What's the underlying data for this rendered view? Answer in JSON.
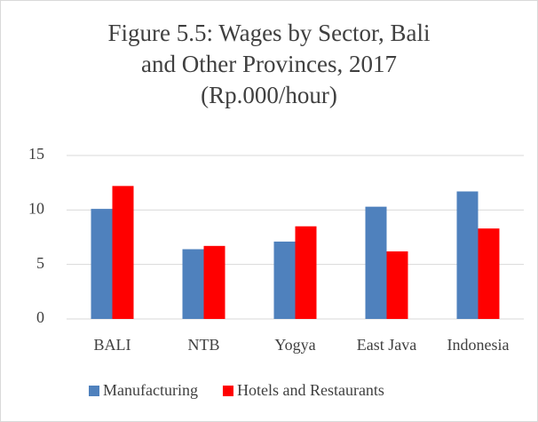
{
  "chart_data": {
    "type": "bar",
    "title": [
      "Figure 5.5: Wages by Sector, Bali",
      "and Other Provinces, 2017",
      "(Rp.000/hour)"
    ],
    "categories": [
      "BALI",
      "NTB",
      "Yogya",
      "East Java",
      "Indonesia"
    ],
    "series": [
      {
        "name": "Manufacturing",
        "color": "#4f81bd",
        "values": [
          10.1,
          6.4,
          7.1,
          10.3,
          11.7
        ]
      },
      {
        "name": "Hotels and Restaurants",
        "color": "#ff0000",
        "values": [
          12.2,
          6.7,
          8.5,
          6.2,
          8.3
        ]
      }
    ],
    "ylim": [
      0,
      15
    ],
    "yticks": [
      0,
      5,
      10,
      15
    ],
    "grid": true,
    "legend": "bottom"
  }
}
